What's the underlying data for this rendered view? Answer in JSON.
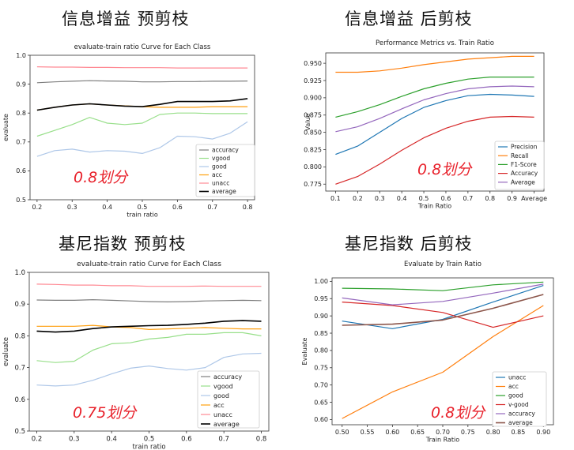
{
  "headings": {
    "tl": "信息增益 预剪枝",
    "tr": "信息增益 后剪枝",
    "bl": "基尼指数 预剪枝",
    "br": "基尼指数 后剪枝"
  },
  "notes": {
    "tl": "0.8划分",
    "tr": "0.8划分",
    "bl": "0.75划分",
    "br": "0.8划分"
  },
  "chart_data": [
    {
      "id": "tl",
      "type": "line",
      "title": "evaluate-train ratio Curve for Each Class",
      "xlabel": "train ratio",
      "ylabel": "evaluate",
      "xlim": [
        0.18,
        0.82
      ],
      "ylim": [
        0.5,
        1.0
      ],
      "xticks": [
        "0.2",
        "0.3",
        "0.4",
        "0.5",
        "0.6",
        "0.7",
        "0.8"
      ],
      "yticks": [
        "0.5",
        "0.6",
        "0.7",
        "0.8",
        "0.9",
        "1.0"
      ],
      "legend_position": "lower-right",
      "x": [
        0.2,
        0.25,
        0.3,
        0.35,
        0.4,
        0.45,
        0.5,
        0.55,
        0.6,
        0.65,
        0.7,
        0.75,
        0.8
      ],
      "series": [
        {
          "name": "accuracy",
          "color": "#7f7f7f",
          "values": [
            0.905,
            0.908,
            0.91,
            0.912,
            0.911,
            0.91,
            0.908,
            0.908,
            0.909,
            0.909,
            0.91,
            0.91,
            0.911
          ]
        },
        {
          "name": "vgood",
          "color": "#98df8a",
          "values": [
            0.72,
            0.74,
            0.76,
            0.785,
            0.765,
            0.76,
            0.765,
            0.795,
            0.8,
            0.8,
            0.798,
            0.798,
            0.798
          ]
        },
        {
          "name": "good",
          "color": "#aec7e8",
          "values": [
            0.65,
            0.67,
            0.675,
            0.665,
            0.67,
            0.668,
            0.66,
            0.68,
            0.72,
            0.718,
            0.71,
            0.73,
            0.77
          ]
        },
        {
          "name": "acc",
          "color": "#ff9f0e",
          "values": [
            0.81,
            0.82,
            0.828,
            0.832,
            0.828,
            0.825,
            0.822,
            0.82,
            0.82,
            0.82,
            0.822,
            0.822,
            0.822
          ]
        },
        {
          "name": "unacc",
          "color": "#ff8a94",
          "values": [
            0.96,
            0.959,
            0.959,
            0.958,
            0.958,
            0.957,
            0.957,
            0.957,
            0.956,
            0.956,
            0.956,
            0.956,
            0.956
          ]
        },
        {
          "name": "average",
          "color": "#000000",
          "values": [
            0.81,
            0.82,
            0.828,
            0.832,
            0.828,
            0.824,
            0.822,
            0.83,
            0.84,
            0.84,
            0.84,
            0.842,
            0.85
          ]
        }
      ]
    },
    {
      "id": "tr",
      "type": "line",
      "title": "Performance Metrics vs. Train Ratio",
      "xlabel": "Train Ratio",
      "ylabel": "Value",
      "ylim": [
        0.765,
        0.965
      ],
      "categories": [
        "0.1",
        "0.2",
        "0.3",
        "0.4",
        "0.5",
        "0.6",
        "0.7",
        "0.8",
        "0.9",
        "Average"
      ],
      "yticks": [
        "0.775",
        "0.800",
        "0.825",
        "0.850",
        "0.875",
        "0.900",
        "0.925",
        "0.950"
      ],
      "legend_position": "lower-right",
      "series": [
        {
          "name": "Precision",
          "color": "#1f77b4",
          "values": [
            0.818,
            0.83,
            0.85,
            0.87,
            0.886,
            0.896,
            0.903,
            0.905,
            0.904,
            0.902
          ]
        },
        {
          "name": "Recall",
          "color": "#ff7f0e",
          "values": [
            0.937,
            0.937,
            0.939,
            0.943,
            0.948,
            0.952,
            0.956,
            0.958,
            0.96,
            0.96
          ]
        },
        {
          "name": "F1-Score",
          "color": "#2ca02c",
          "values": [
            0.872,
            0.88,
            0.89,
            0.902,
            0.913,
            0.921,
            0.927,
            0.93,
            0.93,
            0.93
          ]
        },
        {
          "name": "Accuracy",
          "color": "#d62728",
          "values": [
            0.775,
            0.786,
            0.804,
            0.824,
            0.842,
            0.856,
            0.866,
            0.872,
            0.873,
            0.872
          ]
        },
        {
          "name": "Average",
          "color": "#9467bd",
          "values": [
            0.851,
            0.858,
            0.87,
            0.884,
            0.897,
            0.906,
            0.913,
            0.916,
            0.917,
            0.916
          ]
        }
      ]
    },
    {
      "id": "bl",
      "type": "line",
      "title": "evaluate-train ratio Curve for Each Class",
      "xlabel": "train ratio",
      "ylabel": "evaluate",
      "xlim": [
        0.18,
        0.82
      ],
      "ylim": [
        0.5,
        1.0
      ],
      "xticks": [
        "0.2",
        "0.3",
        "0.4",
        "0.5",
        "0.6",
        "0.7",
        "0.8"
      ],
      "yticks": [
        "0.5",
        "0.6",
        "0.7",
        "0.8",
        "0.9",
        "1.0"
      ],
      "legend_position": "lower-right",
      "x": [
        0.2,
        0.25,
        0.3,
        0.35,
        0.4,
        0.45,
        0.5,
        0.55,
        0.6,
        0.65,
        0.7,
        0.75,
        0.8
      ],
      "series": [
        {
          "name": "accuracy",
          "color": "#7f7f7f",
          "values": [
            0.913,
            0.912,
            0.912,
            0.914,
            0.912,
            0.91,
            0.908,
            0.907,
            0.908,
            0.91,
            0.911,
            0.912,
            0.911
          ]
        },
        {
          "name": "vgood",
          "color": "#98df8a",
          "values": [
            0.722,
            0.716,
            0.72,
            0.755,
            0.775,
            0.778,
            0.79,
            0.795,
            0.805,
            0.805,
            0.81,
            0.81,
            0.8
          ]
        },
        {
          "name": "good",
          "color": "#aec7e8",
          "values": [
            0.645,
            0.642,
            0.645,
            0.66,
            0.68,
            0.698,
            0.705,
            0.697,
            0.692,
            0.7,
            0.732,
            0.743,
            0.745
          ]
        },
        {
          "name": "acc",
          "color": "#ff9f0e",
          "values": [
            0.83,
            0.83,
            0.83,
            0.833,
            0.828,
            0.826,
            0.82,
            0.822,
            0.824,
            0.826,
            0.824,
            0.822,
            0.822
          ]
        },
        {
          "name": "unacc",
          "color": "#ff8a94",
          "values": [
            0.963,
            0.962,
            0.96,
            0.96,
            0.958,
            0.958,
            0.956,
            0.956,
            0.956,
            0.957,
            0.956,
            0.956,
            0.956
          ]
        },
        {
          "name": "average",
          "color": "#000000",
          "values": [
            0.815,
            0.812,
            0.815,
            0.823,
            0.828,
            0.83,
            0.832,
            0.833,
            0.836,
            0.84,
            0.846,
            0.848,
            0.846
          ]
        }
      ]
    },
    {
      "id": "br",
      "type": "line",
      "title": "Evaluate by Train Ratio",
      "xlabel": "Train Ratio",
      "ylabel": "Evaluate",
      "xlim": [
        0.48,
        0.92
      ],
      "ylim": [
        0.585,
        1.01
      ],
      "xticks": [
        "0.50",
        "0.55",
        "0.60",
        "0.65",
        "0.70",
        "0.75",
        "0.80",
        "0.85",
        "0.90"
      ],
      "yticks": [
        "0.60",
        "0.65",
        "0.70",
        "0.75",
        "0.80",
        "0.85",
        "0.90",
        "0.95",
        "1.00"
      ],
      "legend_position": "lower-right",
      "x": [
        0.5,
        0.6,
        0.7,
        0.8,
        0.9
      ],
      "series": [
        {
          "name": "unacc",
          "color": "#1f77b4",
          "values": [
            0.885,
            0.863,
            0.89,
            0.94,
            0.988
          ]
        },
        {
          "name": "acc",
          "color": "#ff7f0e",
          "values": [
            0.603,
            0.68,
            0.737,
            0.84,
            0.93
          ]
        },
        {
          "name": "good",
          "color": "#2ca02c",
          "values": [
            0.98,
            0.978,
            0.973,
            0.99,
            0.998
          ]
        },
        {
          "name": "v-good",
          "color": "#d62728",
          "values": [
            0.94,
            0.93,
            0.91,
            0.867,
            0.9
          ]
        },
        {
          "name": "accuracy",
          "color": "#9467bd",
          "values": [
            0.952,
            0.932,
            0.942,
            0.966,
            0.992
          ]
        },
        {
          "name": "average",
          "color": "#8c564b",
          "values": [
            0.873,
            0.876,
            0.888,
            0.922,
            0.962
          ]
        }
      ]
    }
  ]
}
